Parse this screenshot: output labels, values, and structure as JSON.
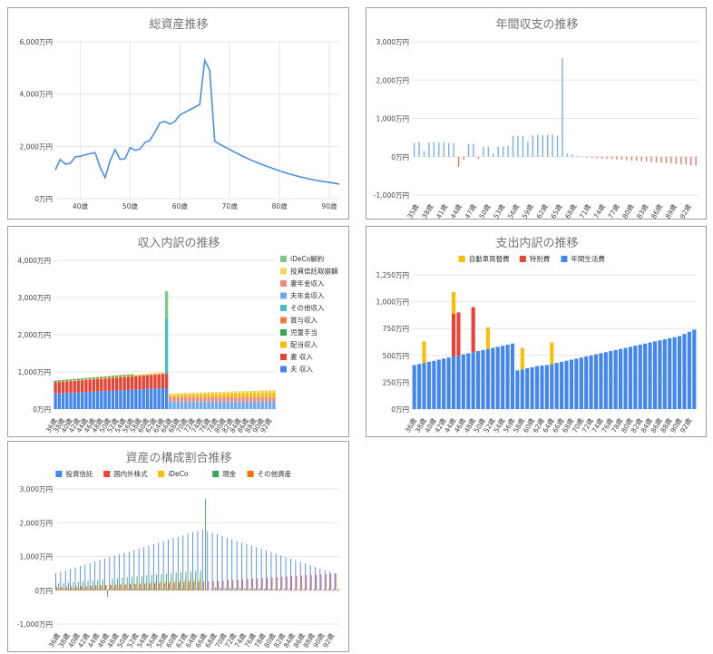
{
  "colors": {
    "line": "#4a90e2",
    "grid": "#e6e6e6",
    "positive_bar": "#79aef0",
    "negative_bar": "#e07a6a"
  },
  "chart_data": [
    {
      "id": "total",
      "type": "line",
      "title": "総資産推移",
      "x_ticks": [
        "40歳",
        "50歳",
        "60歳",
        "70歳",
        "80歳",
        "90歳"
      ],
      "y_ticks": [
        "0万円",
        "2,000万円",
        "4,000万円",
        "6,000万円"
      ],
      "ylim": [
        0,
        6000
      ],
      "xlim": [
        35,
        92
      ],
      "grid": true,
      "series": [
        {
          "x": [
            35,
            36,
            37,
            38,
            39,
            40,
            41,
            42,
            43,
            44,
            45,
            46,
            47,
            48,
            49,
            50,
            51,
            52,
            53,
            54,
            55,
            56,
            57,
            58,
            59,
            60,
            61,
            62,
            63,
            64,
            65,
            66,
            67,
            68,
            70,
            72,
            74,
            76,
            78,
            80,
            82,
            84,
            86,
            88,
            90,
            92
          ],
          "values": [
            1100,
            1500,
            1320,
            1350,
            1600,
            1620,
            1680,
            1720,
            1760,
            1200,
            800,
            1450,
            1870,
            1500,
            1530,
            1950,
            1850,
            1900,
            2150,
            2230,
            2550,
            2900,
            2950,
            2850,
            2950,
            3200,
            3300,
            3400,
            3500,
            3600,
            5300,
            4900,
            2200,
            2080,
            1880,
            1680,
            1500,
            1340,
            1200,
            1060,
            940,
            840,
            750,
            680,
            620,
            560
          ]
        }
      ]
    },
    {
      "id": "annual",
      "type": "bar",
      "title": "年間収支の推移",
      "x_ticks": [
        "35歳",
        "38歳",
        "41歳",
        "44歳",
        "47歳",
        "50歳",
        "53歳",
        "56歳",
        "59歳",
        "62歳",
        "65歳",
        "68歳",
        "71歳",
        "74歳",
        "77歳",
        "80歳",
        "83歳",
        "86歳",
        "89歳",
        "92歳"
      ],
      "y_ticks": [
        "-1,000万円",
        "0万円",
        "1,000万円",
        "2,000万円",
        "3,000万円"
      ],
      "ylim": [
        -1000,
        3000
      ],
      "grid": true,
      "series": [
        {
          "x": [
            35,
            36,
            37,
            38,
            39,
            40,
            41,
            42,
            43,
            44,
            45,
            46,
            47,
            48,
            49,
            50,
            51,
            52,
            53,
            54,
            55,
            56,
            57,
            58,
            59,
            60,
            61,
            62,
            63,
            64,
            65,
            66,
            67,
            68,
            69,
            70,
            71,
            72,
            73,
            74,
            75,
            76,
            77,
            78,
            79,
            80,
            81,
            82,
            83,
            84,
            85,
            86,
            87,
            88,
            89,
            90,
            91,
            92
          ],
          "values": [
            360,
            380,
            150,
            370,
            380,
            370,
            380,
            360,
            350,
            -260,
            -80,
            330,
            330,
            -50,
            260,
            260,
            80,
            260,
            270,
            280,
            540,
            550,
            540,
            380,
            560,
            570,
            560,
            570,
            580,
            550,
            2570,
            80,
            60,
            20,
            -10,
            -20,
            -30,
            -40,
            -50,
            -55,
            -60,
            -70,
            -80,
            -90,
            -100,
            -110,
            -120,
            -130,
            -140,
            -150,
            -160,
            -170,
            -180,
            -190,
            -200,
            -210,
            -220,
            -230
          ]
        }
      ]
    },
    {
      "id": "income",
      "type": "bar",
      "title": "収入内訳の推移",
      "stacked": true,
      "x_ticks": [
        "36歳",
        "38歳",
        "40歳",
        "42歳",
        "44歳",
        "46歳",
        "48歳",
        "50歳",
        "52歳",
        "54歳",
        "56歳",
        "58歳",
        "60歳",
        "62歳",
        "64歳",
        "66歳",
        "68歳",
        "70歳",
        "72歳",
        "74歳",
        "76歳",
        "78歳",
        "80歳",
        "82歳",
        "84歳",
        "86歳",
        "88歳",
        "90歳",
        "92歳"
      ],
      "y_ticks": [
        "0万円",
        "1,000万円",
        "2,000万円",
        "3,000万円",
        "4,000万円"
      ],
      "ylim": [
        0,
        4000
      ],
      "legend_position": "right",
      "legend": [
        {
          "name": "iDeCo解約",
          "color": "#7fc68f"
        },
        {
          "name": "投資信託取崩額",
          "color": "#f4d35e"
        },
        {
          "name": "妻年金収入",
          "color": "#ef8a7f"
        },
        {
          "name": "夫年金収入",
          "color": "#6fa8f0"
        },
        {
          "name": "その他収入",
          "color": "#46bdc6"
        },
        {
          "name": "賞与収入",
          "color": "#f07b3f"
        },
        {
          "name": "児童手当",
          "color": "#34a853"
        },
        {
          "name": "配当収入",
          "color": "#fbbc04"
        },
        {
          "name": "妻 収入",
          "color": "#ea4335"
        },
        {
          "name": "夫 収入",
          "color": "#4285f4"
        }
      ],
      "x_range": [
        36,
        93
      ],
      "notes": "Ages 36–65: husband income ~420→560, wife income ~300→380, small allowance/dividend; age 65 has other income ~1,500 and iDeCo ~700; ages 66–93: pensions ~300 + dividend ~60–120 + fund drawdown ~40–70."
    },
    {
      "id": "expense",
      "type": "bar",
      "title": "支出内訳の推移",
      "stacked": true,
      "x_ticks": [
        "36歳",
        "38歳",
        "40歳",
        "42歳",
        "44歳",
        "46歳",
        "48歳",
        "50歳",
        "52歳",
        "54歳",
        "56歳",
        "58歳",
        "60歳",
        "62歳",
        "64歳",
        "66歳",
        "68歳",
        "70歳",
        "72歳",
        "74歳",
        "76歳",
        "78歳",
        "80歳",
        "82歳",
        "84歳",
        "86歳",
        "88歳",
        "90歳",
        "92歳"
      ],
      "y_ticks": [
        "0万円",
        "250万円",
        "500万円",
        "750万円",
        "1,000万円",
        "1,250万円"
      ],
      "ylim": [
        0,
        1250
      ],
      "legend_position": "top",
      "legend": [
        {
          "name": "自動車買替費",
          "color": "#fbbc04"
        },
        {
          "name": "特別費",
          "color": "#ea4335"
        },
        {
          "name": "年間生活費",
          "color": "#4285f4"
        }
      ],
      "x": [
        36,
        37,
        38,
        39,
        40,
        41,
        42,
        43,
        44,
        45,
        46,
        47,
        48,
        49,
        50,
        51,
        52,
        53,
        54,
        55,
        56,
        57,
        58,
        59,
        60,
        61,
        62,
        63,
        64,
        65,
        66,
        67,
        68,
        69,
        70,
        71,
        72,
        73,
        74,
        75,
        76,
        77,
        78,
        79,
        80,
        81,
        82,
        83,
        84,
        85,
        86,
        87,
        88,
        89,
        90,
        91,
        92,
        93
      ],
      "series": [
        {
          "name": "年間生活費",
          "values": [
            410,
            420,
            430,
            440,
            450,
            460,
            470,
            480,
            490,
            500,
            510,
            520,
            530,
            540,
            550,
            560,
            570,
            580,
            590,
            600,
            610,
            360,
            370,
            380,
            390,
            400,
            405,
            410,
            420,
            430,
            440,
            450,
            460,
            470,
            480,
            490,
            500,
            510,
            520,
            530,
            540,
            550,
            560,
            570,
            580,
            590,
            600,
            610,
            620,
            630,
            640,
            650,
            660,
            670,
            680,
            700,
            720,
            740
          ]
        },
        {
          "name": "特別費",
          "values": [
            0,
            0,
            0,
            0,
            0,
            0,
            0,
            0,
            400,
            400,
            0,
            0,
            420,
            0,
            0,
            0,
            0,
            0,
            0,
            0,
            0,
            0,
            0,
            0,
            0,
            0,
            0,
            0,
            0,
            0,
            0,
            0,
            0,
            0,
            0,
            0,
            0,
            0,
            0,
            0,
            0,
            0,
            0,
            0,
            0,
            0,
            0,
            0,
            0,
            0,
            0,
            0,
            0,
            0,
            0,
            0,
            0,
            0
          ]
        },
        {
          "name": "自動車買替費",
          "values": [
            0,
            0,
            200,
            0,
            0,
            0,
            0,
            0,
            200,
            0,
            0,
            0,
            0,
            0,
            0,
            200,
            0,
            0,
            0,
            0,
            0,
            0,
            200,
            0,
            0,
            0,
            0,
            0,
            200,
            0,
            0,
            0,
            0,
            0,
            0,
            0,
            0,
            0,
            0,
            0,
            0,
            0,
            0,
            0,
            0,
            0,
            0,
            0,
            0,
            0,
            0,
            0,
            0,
            0,
            0,
            0,
            0,
            0
          ]
        }
      ]
    },
    {
      "id": "composition",
      "type": "bar",
      "title": "資産の構成割合推移",
      "x_ticks": [
        "36歳",
        "38歳",
        "40歳",
        "42歳",
        "44歳",
        "46歳",
        "48歳",
        "50歳",
        "52歳",
        "54歳",
        "56歳",
        "58歳",
        "60歳",
        "62歳",
        "64歳",
        "66歳",
        "68歳",
        "70歳",
        "72歳",
        "74歳",
        "76歳",
        "78歳",
        "80歳",
        "82歳",
        "84歳",
        "86歳",
        "88歳",
        "90歳",
        "92歳"
      ],
      "y_ticks": [
        "-1,000万円",
        "0万円",
        "1,000万円",
        "2,000万円",
        "3,000万円"
      ],
      "ylim": [
        -1000,
        3000
      ],
      "legend_position": "top",
      "legend": [
        {
          "name": "投資信託",
          "color": "#4285f4"
        },
        {
          "name": "国内外株式",
          "color": "#ea4335"
        },
        {
          "name": "iDeCo",
          "color": "#fbbc04"
        },
        {
          "name": "現金",
          "color": "#34a853"
        },
        {
          "name": "その他資産",
          "color": "#ff6d01"
        }
      ],
      "x_range": [
        36,
        93
      ],
      "notes": "Investment trusts rise ~500→1,800 by age 66 then fall to ~500; cash ~200→600 with spike 2,700 at 66; small negative values after 70."
    }
  ]
}
